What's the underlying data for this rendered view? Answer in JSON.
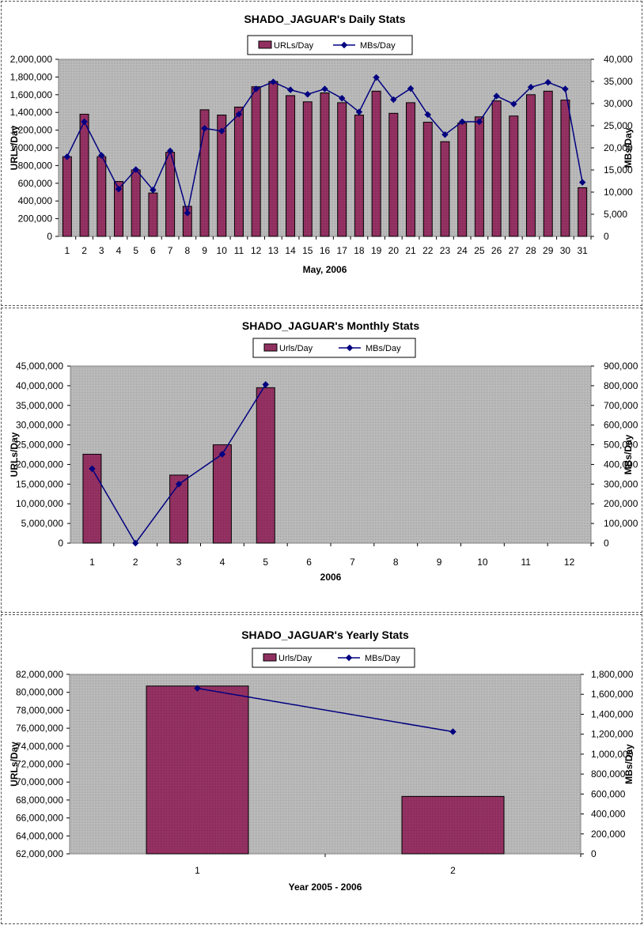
{
  "chart_data": [
    {
      "type": "bar",
      "title": "SHADO_JAGUAR's Daily Stats",
      "xlabel": "May, 2006",
      "ylabel": "URLs/Day",
      "y2label": "MBs/Day",
      "legend": [
        "URLs/Day",
        "MBs/Day"
      ],
      "legend_position": "top-center",
      "grid": false,
      "categories": [
        "1",
        "2",
        "3",
        "4",
        "5",
        "6",
        "7",
        "8",
        "9",
        "10",
        "11",
        "12",
        "13",
        "14",
        "15",
        "16",
        "17",
        "18",
        "19",
        "20",
        "21",
        "22",
        "23",
        "24",
        "25",
        "26",
        "27",
        "28",
        "29",
        "30",
        "31"
      ],
      "ylim": [
        0,
        2000000
      ],
      "y2lim": [
        0,
        40000
      ],
      "yticks": [
        "0",
        "200,000",
        "400,000",
        "600,000",
        "800,000",
        "1,000,000",
        "1,200,000",
        "1,400,000",
        "1,600,000",
        "1,800,000",
        "2,000,000"
      ],
      "y2ticks": [
        "0",
        "5,000",
        "10,000",
        "15,000",
        "20,000",
        "25,000",
        "30,000",
        "35,000",
        "40,000"
      ],
      "series": [
        {
          "name": "URLs/Day",
          "type": "bar",
          "axis": "left",
          "values": [
            900000,
            1380000,
            900000,
            620000,
            750000,
            490000,
            950000,
            340000,
            1430000,
            1370000,
            1460000,
            1690000,
            1750000,
            1590000,
            1520000,
            1620000,
            1510000,
            1370000,
            1640000,
            1390000,
            1510000,
            1290000,
            1070000,
            1280000,
            1350000,
            1530000,
            1360000,
            1600000,
            1640000,
            1540000,
            550000
          ]
        },
        {
          "name": "MBs/Day",
          "type": "line",
          "axis": "right",
          "values": [
            18000,
            25900,
            18300,
            10700,
            15100,
            10500,
            19300,
            5300,
            24400,
            23800,
            27600,
            33300,
            34900,
            33100,
            32100,
            33300,
            31200,
            28100,
            35900,
            30900,
            33400,
            27500,
            23000,
            25900,
            25900,
            31700,
            29900,
            33700,
            34800,
            33300,
            12200
          ]
        }
      ],
      "colors": {
        "bar": "#993366",
        "line": "#000080",
        "plot_bg": "#c0c0c0"
      }
    },
    {
      "type": "bar",
      "title": "SHADO_JAGUAR's Monthly Stats",
      "xlabel": "2006",
      "ylabel": "URLs/Day",
      "y2label": "MBs/Day",
      "legend": [
        "Urls/Day",
        "MBs/Day"
      ],
      "legend_position": "top-center",
      "grid": false,
      "categories": [
        "1",
        "2",
        "3",
        "4",
        "5",
        "6",
        "7",
        "8",
        "9",
        "10",
        "11",
        "12"
      ],
      "ylim": [
        0,
        45000000
      ],
      "y2lim": [
        0,
        900000
      ],
      "yticks": [
        "0",
        "5,000,000",
        "10,000,000",
        "15,000,000",
        "20,000,000",
        "25,000,000",
        "30,000,000",
        "35,000,000",
        "40,000,000",
        "45,000,000"
      ],
      "y2ticks": [
        "0",
        "100,000",
        "200,000",
        "300,000",
        "400,000",
        "500,000",
        "600,000",
        "700,000",
        "800,000",
        "900,000"
      ],
      "series": [
        {
          "name": "Urls/Day",
          "type": "bar",
          "axis": "left",
          "values": [
            22600000,
            null,
            17300000,
            25000000,
            39500000,
            null,
            null,
            null,
            null,
            null,
            null,
            null
          ]
        },
        {
          "name": "MBs/Day",
          "type": "line",
          "axis": "right",
          "values": [
            378000,
            0,
            300000,
            452000,
            806000,
            null,
            null,
            null,
            null,
            null,
            null,
            null
          ]
        }
      ],
      "colors": {
        "bar": "#993366",
        "line": "#000080",
        "plot_bg": "#c0c0c0"
      }
    },
    {
      "type": "bar",
      "title": "SHADO_JAGUAR's Yearly Stats",
      "xlabel": "Year 2005 - 2006",
      "ylabel": "URLs/Day",
      "y2label": "MBs/Day",
      "legend": [
        "Urls/Day",
        "MBs/Day"
      ],
      "legend_position": "top-center",
      "grid": false,
      "categories": [
        "1",
        "2"
      ],
      "ylim": [
        62000000,
        82000000
      ],
      "y2lim": [
        0,
        1800000
      ],
      "yticks": [
        "62,000,000",
        "64,000,000",
        "66,000,000",
        "68,000,000",
        "70,000,000",
        "72,000,000",
        "74,000,000",
        "76,000,000",
        "78,000,000",
        "80,000,000",
        "82,000,000"
      ],
      "y2ticks": [
        "0",
        "200,000",
        "400,000",
        "600,000",
        "800,000",
        "1,000,000",
        "1,200,000",
        "1,400,000",
        "1,600,000",
        "1,800,000"
      ],
      "series": [
        {
          "name": "Urls/Day",
          "type": "bar",
          "axis": "left",
          "values": [
            80700000,
            68400000
          ]
        },
        {
          "name": "MBs/Day",
          "type": "line",
          "axis": "right",
          "values": [
            1660000,
            1225000
          ]
        }
      ],
      "colors": {
        "bar": "#993366",
        "line": "#000080",
        "plot_bg": "#c0c0c0"
      }
    }
  ]
}
